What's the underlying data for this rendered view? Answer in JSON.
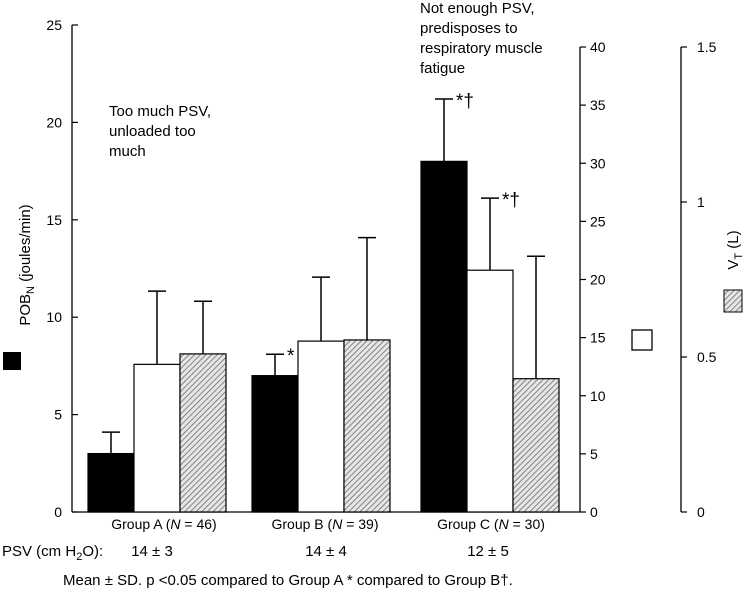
{
  "chart_data": {
    "type": "bar",
    "title": "",
    "categories": [
      "Group A (N = 46)",
      "Group B (N = 39)",
      "Group C (N = 30)"
    ],
    "category_labels": [
      {
        "group": "Group A",
        "n_prefix": "(",
        "n_var": "N",
        "n_rest": " = 46)"
      },
      {
        "group": "Group B",
        "n_prefix": "(",
        "n_var": "N",
        "n_rest": " = 39)"
      },
      {
        "group": "Group C",
        "n_prefix": "(",
        "n_var": "N",
        "n_rest": " = 30)"
      }
    ],
    "axes": {
      "left": {
        "label_main": "POB",
        "label_sub": "N",
        "label_tail": " (joules/min)",
        "ylim": [
          0,
          25
        ],
        "ticks": [
          0,
          5,
          10,
          15,
          20,
          25
        ]
      },
      "mid": {
        "label": "",
        "ylim": [
          0,
          40
        ],
        "ticks": [
          0,
          5,
          10,
          15,
          20,
          25,
          30,
          35,
          40
        ]
      },
      "right": {
        "label_main": "V",
        "label_sub": "T",
        "label_tail": " (L)",
        "ylim": [
          0,
          1.5
        ],
        "ticks": [
          "0",
          "0.5",
          "1",
          "1.5"
        ]
      }
    },
    "series": [
      {
        "key": "pob",
        "axis": "left",
        "fill": "#000000",
        "values": [
          3.0,
          7.0,
          18.0
        ],
        "sd": [
          1.1,
          1.1,
          3.2
        ],
        "markers": [
          "",
          "*",
          "*†"
        ]
      },
      {
        "key": "white",
        "axis": "mid",
        "fill": "#ffffff",
        "values": [
          12.7,
          14.7,
          20.8
        ],
        "sd": [
          6.3,
          5.5,
          6.2
        ],
        "markers": [
          "",
          "",
          "*†"
        ]
      },
      {
        "key": "vt",
        "axis": "right",
        "fill": "hatch",
        "values": [
          0.51,
          0.555,
          0.43
        ],
        "sd": [
          0.17,
          0.33,
          0.395
        ],
        "markers": [
          "",
          "",
          ""
        ]
      }
    ],
    "grid": false,
    "legend": "symbols beside each axis"
  },
  "annotations": {
    "group_a": [
      "Too much PSV,",
      "unloaded too",
      "much"
    ],
    "group_c": [
      "Not enough PSV,",
      "predisposes to",
      "respiratory muscle",
      "fatigue"
    ]
  },
  "psv_row": {
    "label_pre": "PSV (cm H",
    "label_sub": "2",
    "label_post": "O):",
    "values": [
      "14 ± 3",
      "14 ± 4",
      "12 ± 5"
    ]
  },
  "footnote": "Mean ± SD. p <0.05 compared to Group A * compared to Group B†."
}
